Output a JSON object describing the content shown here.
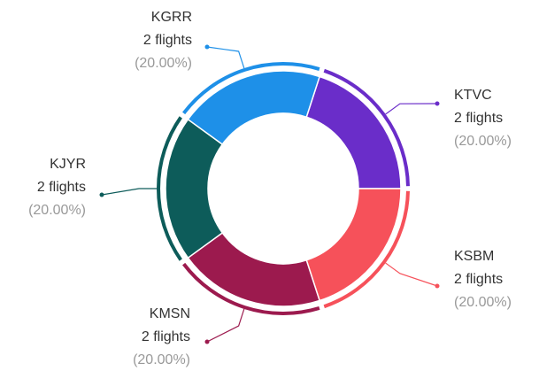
{
  "chart_data": {
    "type": "donut",
    "categories": [
      "KTVC",
      "KSBM",
      "KMSN",
      "KJYR",
      "KGRR"
    ],
    "values": [
      2,
      2,
      2,
      2,
      2
    ],
    "value_labels": [
      "2 flights",
      "2 flights",
      "2 flights",
      "2 flights",
      "2 flights"
    ],
    "percentages": [
      20,
      20,
      20,
      20,
      20
    ],
    "percent_labels": [
      "(20.00%)",
      "(20.00%)",
      "(20.00%)",
      "(20.00%)",
      "(20.00%)"
    ],
    "colors": [
      "#6a2dc9",
      "#f6515a",
      "#9c1a4e",
      "#0d5c5a",
      "#1e90e8"
    ]
  }
}
